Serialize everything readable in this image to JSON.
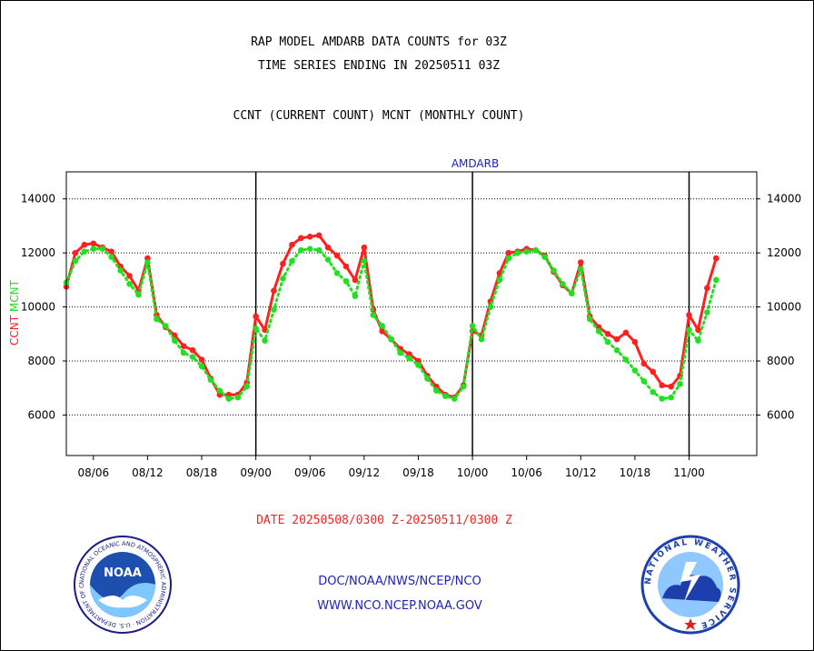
{
  "titles": {
    "line1": "RAP MODEL AMDARB DATA COUNTS for 03Z",
    "line2": "TIME SERIES ENDING IN 20250511 03Z",
    "line3": "CCNT (CURRENT COUNT) MCNT (MONTHLY COUNT)"
  },
  "date_range": "DATE 20250508/0300 Z-20250511/0300 Z",
  "footer": {
    "link1": "DOC/NOAA/NWS/NCEP/NCO",
    "link2": "WWW.NCO.NCEP.NOAA.GOV"
  },
  "logos": {
    "left": "noaa-logo",
    "left_text": "NOAA",
    "left_ring_text": "NATIONAL OCEANIC AND ATMOSPHERIC ADMINISTRATION · U.S. DEPARTMENT OF COMMERCE",
    "right": "national-weather-service-logo",
    "right_ring_text": "NATIONAL WEATHER SERVICE"
  },
  "colors": {
    "ccnt": "#ff2020",
    "mcnt": "#20e020",
    "title_blue": "#2020c0",
    "grid": "#000000"
  },
  "chart_data": {
    "type": "line",
    "title": "AMDARB",
    "ylabel_parts": [
      {
        "text": "CCNT",
        "color": "#ff2020"
      },
      {
        "text": "MCNT",
        "color": "#20e020"
      }
    ],
    "ylim": [
      4500,
      15000
    ],
    "yticks": [
      6000,
      8000,
      10000,
      12000,
      14000
    ],
    "xlim": [
      0,
      12.75
    ],
    "x_tick_positions": [
      0.5,
      1.5,
      2.5,
      3.5,
      4.5,
      5.5,
      6.5,
      7.5,
      8.5,
      9.5,
      10.5,
      11.5
    ],
    "x_tick_labels": [
      "08/06",
      "08/12",
      "08/18",
      "09/00",
      "09/06",
      "09/12",
      "09/18",
      "10/00",
      "10/06",
      "10/12",
      "10/18",
      "11/00"
    ],
    "day_boundaries": [
      3.5,
      7.5,
      11.5
    ],
    "grid": "horizontal dotted",
    "series": [
      {
        "name": "CCNT",
        "color": "#ff2020",
        "x": [
          0,
          0.167,
          0.333,
          0.5,
          0.667,
          0.833,
          1.0,
          1.167,
          1.333,
          1.5,
          1.667,
          1.833,
          2.0,
          2.167,
          2.333,
          2.5,
          2.667,
          2.833,
          3.0,
          3.167,
          3.333,
          3.5,
          3.667,
          3.833,
          4.0,
          4.167,
          4.333,
          4.5,
          4.667,
          4.833,
          5.0,
          5.167,
          5.333,
          5.5,
          5.667,
          5.833,
          6.0,
          6.167,
          6.333,
          6.5,
          6.667,
          6.833,
          7.0,
          7.167,
          7.333,
          7.5,
          7.667,
          7.833,
          8.0,
          8.167,
          8.333,
          8.5,
          8.667,
          8.833,
          9.0,
          9.167,
          9.333,
          9.5,
          9.667,
          9.833,
          10.0,
          10.167,
          10.333,
          10.5,
          10.667,
          10.833,
          11.0,
          11.167,
          11.333,
          11.5,
          11.667,
          11.833,
          12.0
        ],
        "values": [
          10750,
          12000,
          12300,
          12350,
          12200,
          12050,
          11500,
          11150,
          10600,
          11800,
          9700,
          9250,
          8950,
          8550,
          8400,
          8050,
          7350,
          6750,
          6750,
          6750,
          7200,
          9650,
          9150,
          10600,
          11600,
          12300,
          12550,
          12600,
          12650,
          12200,
          11900,
          11500,
          11000,
          12200,
          9900,
          9100,
          8800,
          8450,
          8250,
          8000,
          7450,
          7050,
          6750,
          6650,
          7100,
          9100,
          8950,
          10200,
          11250,
          12000,
          12050,
          12150,
          12100,
          11900,
          11300,
          10800,
          10500,
          11650,
          9650,
          9250,
          9000,
          8800,
          9050,
          8700,
          7900,
          7600,
          7100,
          7050,
          7450,
          9700,
          9150,
          10700,
          11800
        ]
      },
      {
        "name": "MCNT",
        "color": "#20e020",
        "x": [
          0,
          0.167,
          0.333,
          0.5,
          0.667,
          0.833,
          1.0,
          1.167,
          1.333,
          1.5,
          1.667,
          1.833,
          2.0,
          2.167,
          2.333,
          2.5,
          2.667,
          2.833,
          3.0,
          3.167,
          3.333,
          3.5,
          3.667,
          3.833,
          4.0,
          4.167,
          4.333,
          4.5,
          4.667,
          4.833,
          5.0,
          5.167,
          5.333,
          5.5,
          5.667,
          5.833,
          6.0,
          6.167,
          6.333,
          6.5,
          6.667,
          6.833,
          7.0,
          7.167,
          7.333,
          7.5,
          7.667,
          7.833,
          8.0,
          8.167,
          8.333,
          8.5,
          8.667,
          8.833,
          9.0,
          9.167,
          9.333,
          9.5,
          9.667,
          9.833,
          10.0,
          10.167,
          10.333,
          10.5,
          10.667,
          10.833,
          11.0,
          11.167,
          11.333,
          11.5,
          11.667,
          11.833,
          12.0
        ],
        "values": [
          10900,
          11700,
          12050,
          12150,
          12150,
          11850,
          11350,
          10850,
          10450,
          11650,
          9550,
          9300,
          8750,
          8300,
          8150,
          7800,
          7300,
          6900,
          6600,
          6650,
          7050,
          9200,
          8750,
          9900,
          11050,
          11700,
          12100,
          12150,
          12100,
          11750,
          11250,
          10950,
          10400,
          11700,
          9700,
          9300,
          8800,
          8300,
          8100,
          7850,
          7350,
          6900,
          6700,
          6600,
          7050,
          9300,
          8800,
          10000,
          11000,
          11800,
          12000,
          12050,
          12100,
          11850,
          11350,
          10850,
          10500,
          11400,
          9550,
          9100,
          8700,
          8400,
          8050,
          7650,
          7250,
          6850,
          6600,
          6650,
          7150,
          9150,
          8750,
          9800,
          11000
        ]
      }
    ]
  }
}
